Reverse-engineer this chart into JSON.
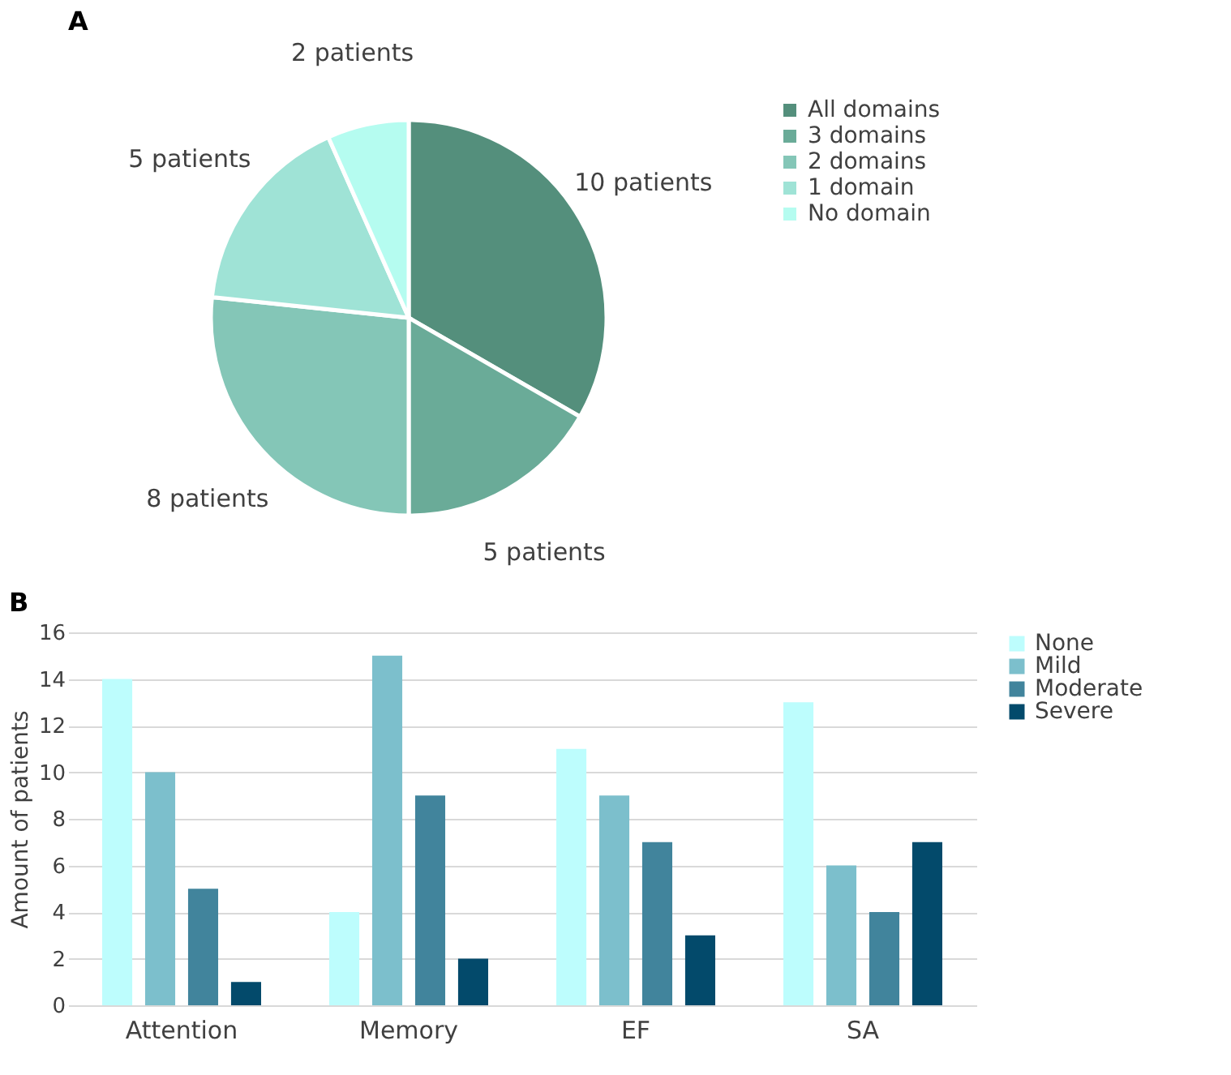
{
  "chart_data": [
    {
      "type": "pie",
      "title": "A",
      "categories": [
        "All domains",
        "3 domains",
        "2 domains",
        "1 domain",
        "No domain"
      ],
      "values": [
        10,
        5,
        8,
        5,
        2
      ],
      "colors": [
        "#548f7c",
        "#6aab98",
        "#84c6b7",
        "#9fe3d6",
        "#b5fcf0"
      ],
      "value_labels": [
        "10 patients",
        "5 patients",
        "8 patients",
        "5 patients",
        "2 patients"
      ],
      "legend": "right"
    },
    {
      "type": "bar",
      "title": "B",
      "ylabel": "Amount of patients",
      "categories": [
        "Attention",
        "Memory",
        "EF",
        "SA"
      ],
      "series": [
        {
          "name": "None",
          "color": "#bdfdfd",
          "values": [
            14,
            4,
            11,
            13
          ]
        },
        {
          "name": "Mild",
          "color": "#7cbfcc",
          "values": [
            10,
            15,
            9,
            6
          ]
        },
        {
          "name": "Moderate",
          "color": "#41849c",
          "values": [
            5,
            9,
            7,
            4
          ]
        },
        {
          "name": "Severe",
          "color": "#034a6b",
          "values": [
            1,
            2,
            3,
            7
          ]
        }
      ],
      "ylim": [
        0,
        16
      ],
      "yticks": [
        0,
        2,
        4,
        6,
        8,
        10,
        12,
        14,
        16
      ],
      "grid": "y",
      "legend": "right"
    }
  ]
}
